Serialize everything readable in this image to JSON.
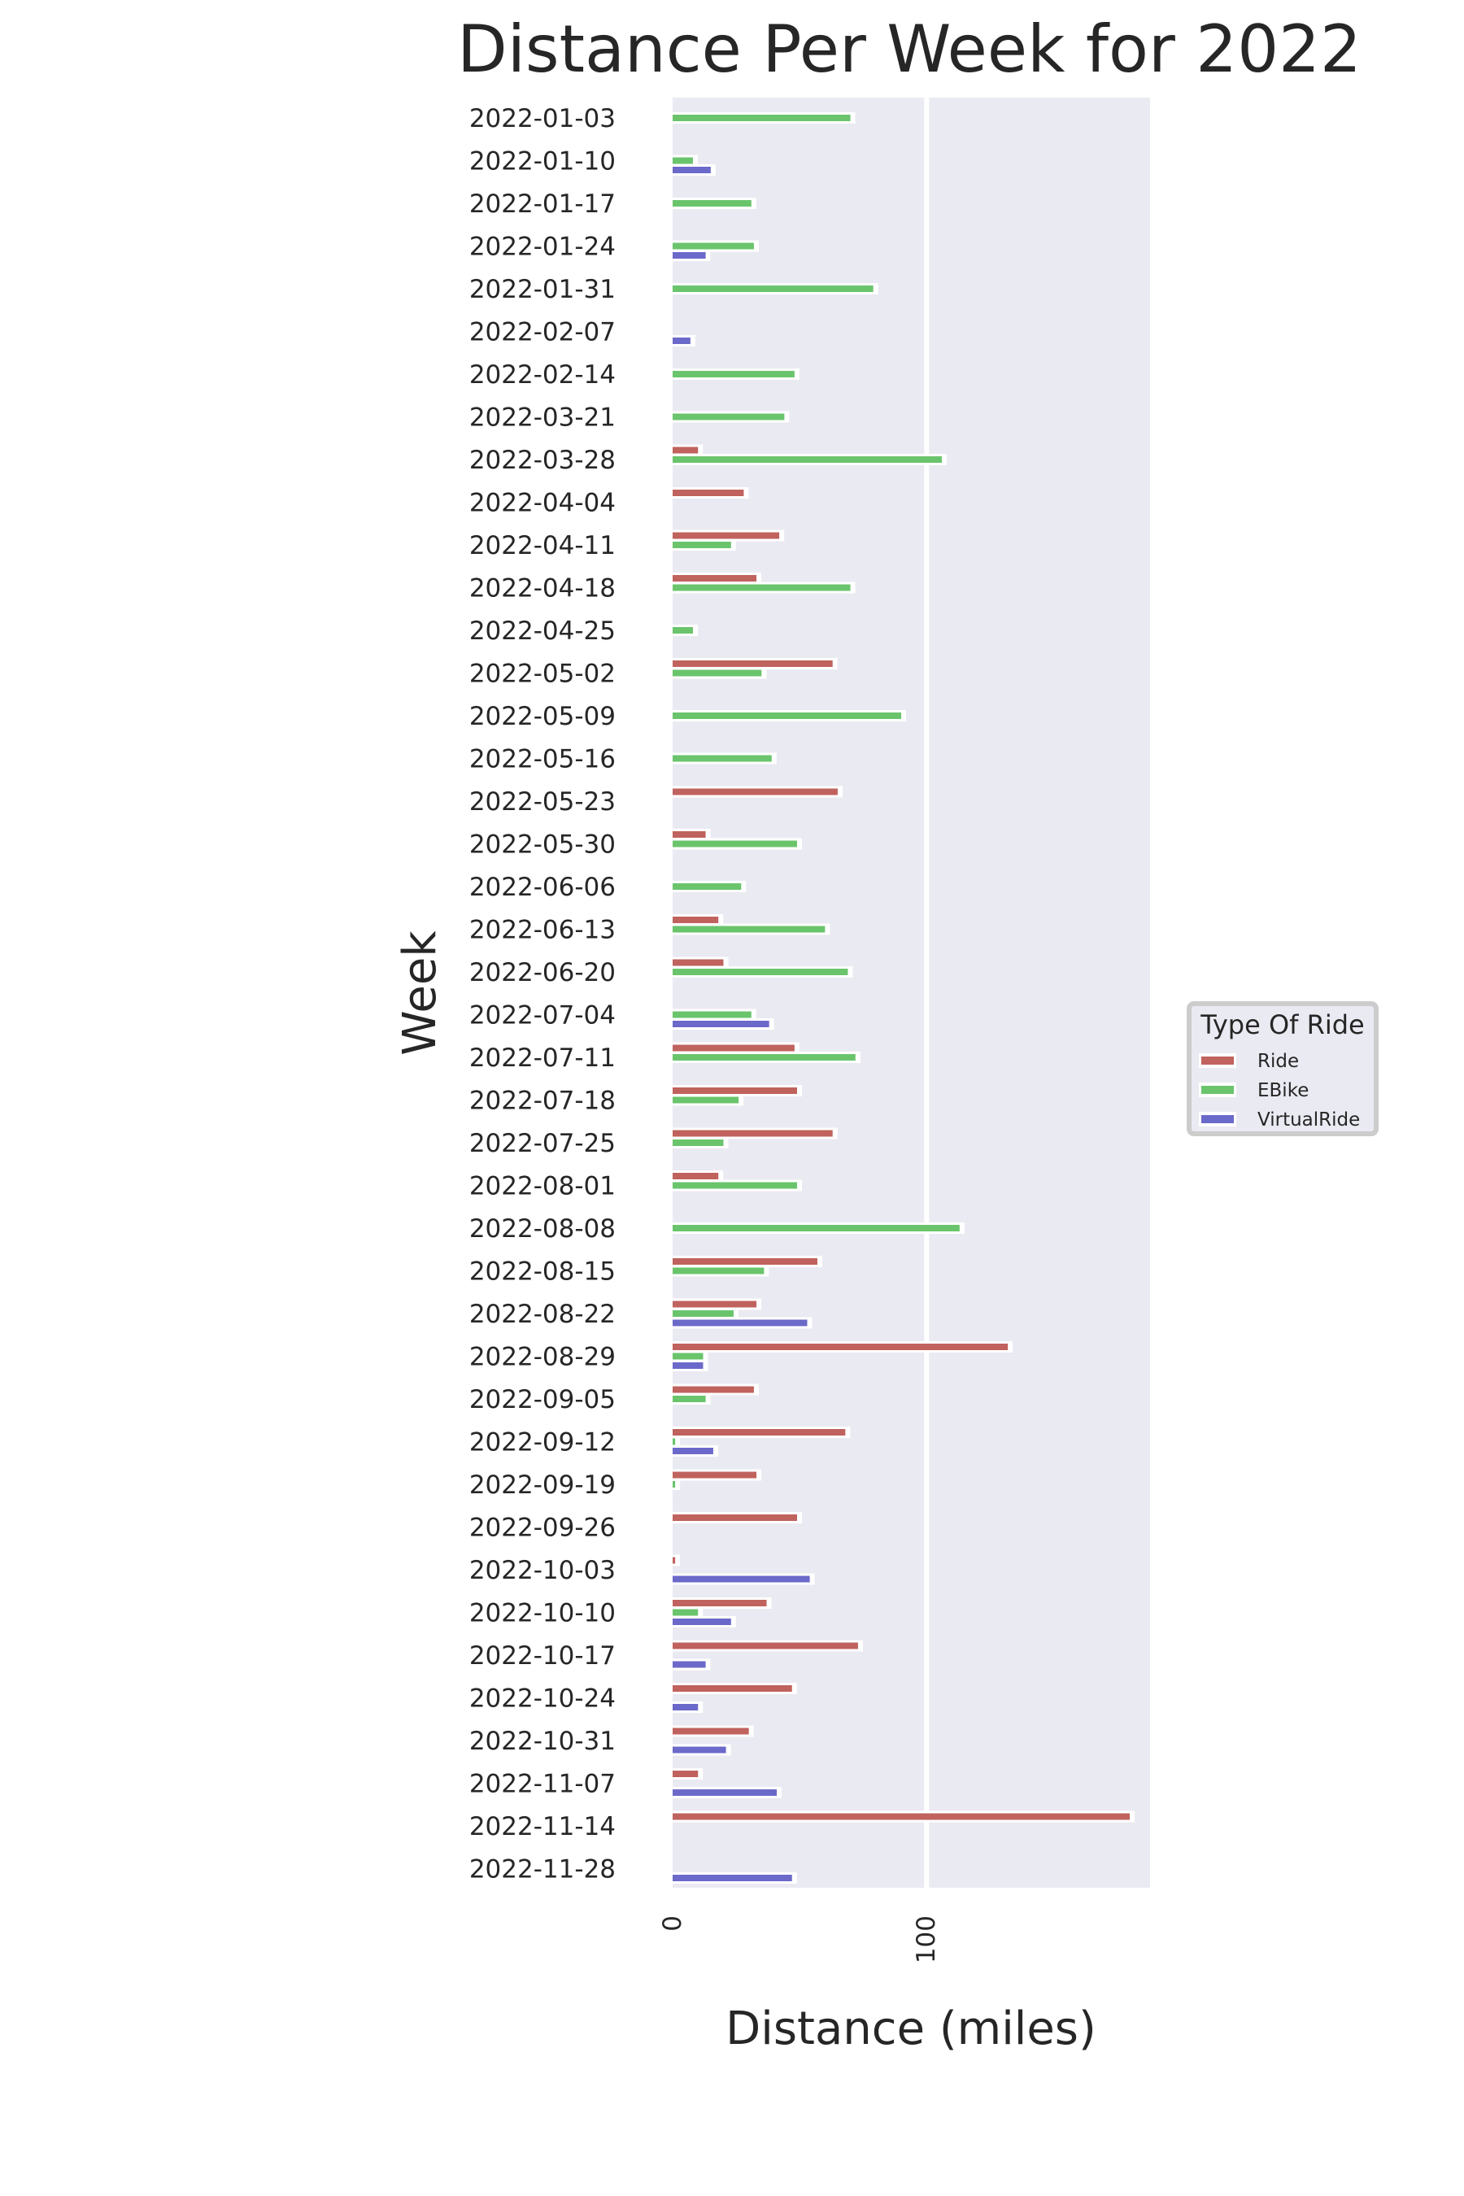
{
  "chart_data": {
    "type": "bar",
    "orientation": "horizontal",
    "title": "Distance Per Week for 2022",
    "xlabel": "Distance (miles)",
    "ylabel": "Week",
    "xlim": [
      0,
      188
    ],
    "xticks": [
      0,
      100
    ],
    "grid": true,
    "legend": {
      "title": "Type Of Ride",
      "position": "right"
    },
    "categories": [
      "2022-01-03",
      "2022-01-10",
      "2022-01-17",
      "2022-01-24",
      "2022-01-31",
      "2022-02-07",
      "2022-02-14",
      "2022-03-21",
      "2022-03-28",
      "2022-04-04",
      "2022-04-11",
      "2022-04-18",
      "2022-04-25",
      "2022-05-02",
      "2022-05-09",
      "2022-05-16",
      "2022-05-23",
      "2022-05-30",
      "2022-06-06",
      "2022-06-13",
      "2022-06-20",
      "2022-07-04",
      "2022-07-11",
      "2022-07-18",
      "2022-07-25",
      "2022-08-01",
      "2022-08-08",
      "2022-08-15",
      "2022-08-22",
      "2022-08-29",
      "2022-09-05",
      "2022-09-12",
      "2022-09-19",
      "2022-09-26",
      "2022-10-03",
      "2022-10-10",
      "2022-10-17",
      "2022-10-24",
      "2022-10-31",
      "2022-11-07",
      "2022-11-14",
      "2022-11-28"
    ],
    "series": [
      {
        "name": "Ride",
        "color": "#c0625d",
        "values": [
          0,
          0,
          0,
          0,
          0,
          0,
          0,
          0,
          10,
          28,
          42,
          33,
          0,
          63,
          0,
          0,
          65,
          13,
          0,
          18,
          20,
          0,
          48,
          49,
          63,
          18,
          0,
          57,
          33,
          132,
          32,
          68,
          33,
          49,
          1,
          37,
          73,
          47,
          30,
          10,
          180,
          0
        ]
      },
      {
        "name": "EBike",
        "color": "#6ac46c",
        "values": [
          70,
          8,
          31,
          32,
          79,
          0,
          48,
          44,
          106,
          0,
          23,
          70,
          8,
          35,
          90,
          39,
          0,
          49,
          27,
          60,
          69,
          31,
          72,
          26,
          20,
          49,
          113,
          36,
          24,
          12,
          13,
          1,
          1,
          0,
          0,
          10,
          0,
          0,
          0,
          0,
          0,
          0
        ]
      },
      {
        "name": "VirtualRide",
        "color": "#6b69c9",
        "values": [
          0,
          15,
          0,
          13,
          0,
          7,
          0,
          0,
          0,
          0,
          0,
          0,
          0,
          0,
          0,
          0,
          0,
          0,
          0,
          0,
          0,
          38,
          0,
          0,
          0,
          0,
          0,
          0,
          53,
          12,
          0,
          16,
          0,
          0,
          54,
          23,
          13,
          10,
          21,
          41,
          0,
          47
        ]
      }
    ]
  }
}
